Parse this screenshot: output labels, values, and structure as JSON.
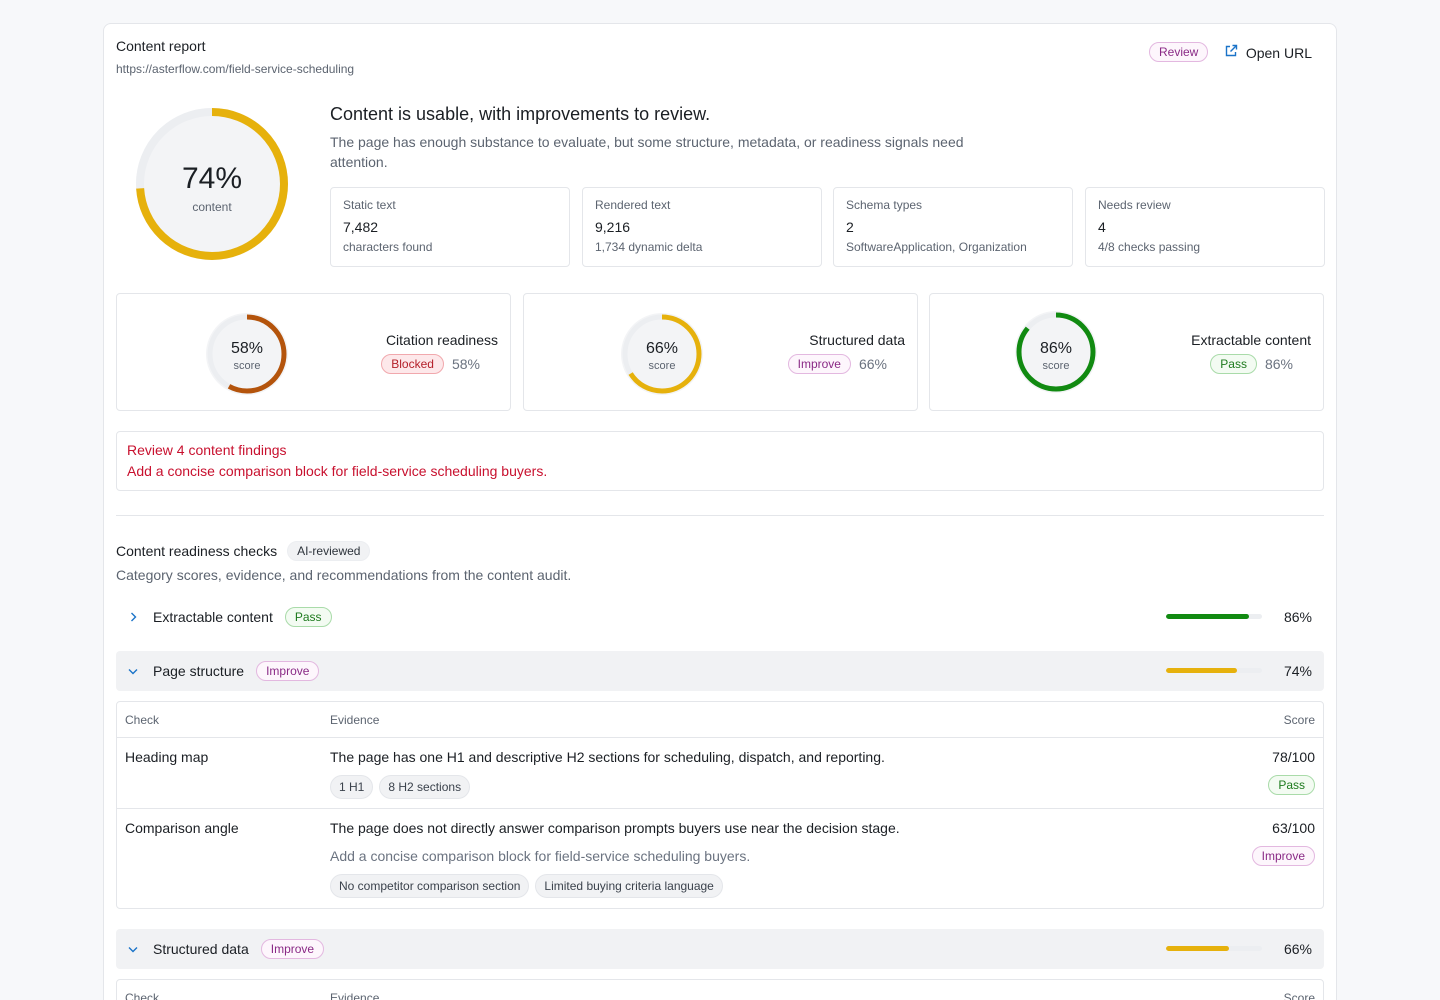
{
  "header": {
    "title": "Content report",
    "url": "https://asterflow.com/field-service-scheduling",
    "status_badge": "Review",
    "open_url_label": "Open URL"
  },
  "overall": {
    "score_label": "74%",
    "score_value": 74,
    "score_caption": "content",
    "ring_color": "#e6b10c",
    "headline": "Content is usable, with improvements to review.",
    "description": "The page has enough substance to evaluate, but some structure, metadata, or readiness signals need attention."
  },
  "stats": [
    {
      "label": "Static text",
      "value": "7,482",
      "sub": "characters found"
    },
    {
      "label": "Rendered text",
      "value": "9,216",
      "sub": "1,734 dynamic delta"
    },
    {
      "label": "Schema types",
      "value": "2",
      "sub": "SoftwareApplication, Organization"
    },
    {
      "label": "Needs review",
      "value": "4",
      "sub": "4/8 checks passing"
    }
  ],
  "score_cards": [
    {
      "name": "Citation readiness",
      "status": "Blocked",
      "score_label": "58%",
      "score_value": 58,
      "caption": "score",
      "color": "#b4540c"
    },
    {
      "name": "Structured data",
      "status": "Improve",
      "score_label": "66%",
      "score_value": 66,
      "caption": "score",
      "color": "#e6b10c"
    },
    {
      "name": "Extractable content",
      "status": "Pass",
      "score_label": "86%",
      "score_value": 86,
      "caption": "score",
      "color": "#118a11"
    }
  ],
  "findings": {
    "heading": "Review 4 content findings",
    "text": "Add a concise comparison block for field-service scheduling buyers."
  },
  "checks": {
    "title": "Content readiness checks",
    "tag": "AI-reviewed",
    "description": "Category scores, evidence, and recommendations from the content audit.",
    "categories": [
      {
        "label": "Extractable content",
        "status": "Pass",
        "value_label": "86%",
        "value": 86,
        "color": "#118a11"
      },
      {
        "label": "Page structure",
        "status": "Improve",
        "value_label": "74%",
        "value": 74,
        "color": "#e6b10c"
      },
      {
        "label": "Structured data",
        "status": "Improve",
        "value_label": "66%",
        "value": 66,
        "color": "#e6b10c"
      }
    ],
    "table_headers": {
      "check": "Check",
      "evidence": "Evidence",
      "score": "Score"
    },
    "rows": [
      {
        "check": "Heading map",
        "evidence": "The page has one H1 and descriptive H2 sections for scheduling, dispatch, and reporting.",
        "chips": [
          "1 H1",
          "8 H2 sections"
        ],
        "score": "78/100",
        "status": "Pass"
      },
      {
        "check": "Comparison angle",
        "evidence": "The page does not directly answer comparison prompts buyers use near the decision stage.",
        "recommendation": "Add a concise comparison block for field-service scheduling buyers.",
        "chips": [
          "No competitor comparison section",
          "Limited buying criteria language"
        ],
        "score": "63/100",
        "status": "Improve"
      }
    ]
  }
}
